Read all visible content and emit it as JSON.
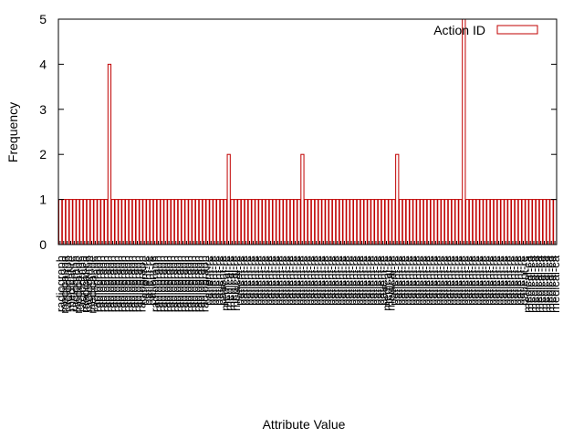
{
  "chart_data": {
    "type": "bar",
    "title": "",
    "xlabel": "Attribute Value",
    "ylabel": "Frequency",
    "ylim": [
      0,
      5
    ],
    "yticks": [
      0,
      1,
      2,
      3,
      4,
      5
    ],
    "legend_position": "top-right",
    "colors": {
      "bar": "#c00000",
      "axis": "#000000"
    },
    "series": [
      {
        "name": "Action ID",
        "values": [
          1,
          1,
          1,
          1,
          1,
          1,
          1,
          1,
          1,
          1,
          1,
          1,
          1,
          1,
          4,
          1,
          1,
          1,
          1,
          1,
          1,
          1,
          1,
          1,
          1,
          1,
          1,
          1,
          1,
          1,
          1,
          1,
          1,
          1,
          1,
          1,
          1,
          1,
          1,
          1,
          1,
          1,
          1,
          1,
          1,
          1,
          1,
          1,
          2,
          1,
          1,
          1,
          1,
          1,
          1,
          1,
          1,
          1,
          1,
          1,
          1,
          1,
          1,
          1,
          1,
          1,
          1,
          1,
          1,
          2,
          1,
          1,
          1,
          1,
          1,
          1,
          1,
          1,
          1,
          1,
          1,
          1,
          1,
          1,
          1,
          1,
          1,
          1,
          1,
          1,
          1,
          1,
          1,
          1,
          1,
          1,
          2,
          1,
          1,
          1,
          1,
          1,
          1,
          1,
          1,
          1,
          1,
          1,
          1,
          1,
          1,
          1,
          1,
          1,
          1,
          5,
          1,
          1,
          1,
          1,
          1,
          1,
          1,
          1,
          1,
          1,
          1,
          1,
          1,
          1,
          1,
          1,
          1,
          1,
          1,
          1,
          1,
          1,
          1,
          1,
          1,
          1
        ]
      }
    ],
    "categories": [
      "radiograph",
      "medical-pa",
      "radiograph",
      "medical-re",
      "radiograph",
      "medical-pe",
      "radiograph",
      "medical-ca",
      "radiograph",
      "medical-pe",
      "radiograph",
      "radiograph",
      "radiograph",
      "radiograph",
      "radiograph",
      "radiograph",
      "radiograph",
      "radiograph",
      "radiograph",
      "radiograph",
      "radiograph",
      "radiograph",
      "radiograph",
      "radiograph",
      "patient-re",
      "patient-re",
      "patient-re",
      "radiograph",
      "radiograph",
      "radiograph",
      "radiograph",
      "radiograph",
      "radiograph",
      "radiograph",
      "radiograph",
      "radiograph",
      "radiograph",
      "radiograph",
      "radiograph",
      "radiograph",
      "radiograph",
      "radiograph",
      "patient-re",
      "patient-re",
      "patient-re",
      "patient-re",
      "patient-re",
      "medical-re",
      "medical-re",
      "medical-re",
      "medical-re",
      "patient-re",
      "patient-re",
      "patient-re",
      "patient-re",
      "patient-re",
      "patient-re",
      "patient-re",
      "patient-re",
      "patient-re",
      "patient-re",
      "patient-re",
      "patient-re",
      "patient-re",
      "patient-re",
      "patient-re",
      "patient-re",
      "patient-re",
      "patient-re",
      "patient-re",
      "patient-re",
      "patient-re",
      "patient-re",
      "patient-re",
      "patient-re",
      "patient-re",
      "patient-re",
      "patient-re",
      "patient-re",
      "patient-re",
      "patient-re",
      "patient-re",
      "patient-re",
      "patient-re",
      "patient-re",
      "patient-re",
      "patient-re",
      "patient-re",
      "patient-re",
      "patient-re",
      "patient-re",
      "patient-re",
      "patient-re",
      "medical-re",
      "medical-re",
      "patient-re",
      "patient-re",
      "patient-re",
      "patient-re",
      "patient-re",
      "patient-re",
      "patient-re",
      "patient-re",
      "patient-re",
      "patient-re",
      "patient-re",
      "patient-re",
      "patient-re",
      "patient-re",
      "patient-re",
      "patient-re",
      "patient-re",
      "patient-re",
      "patient-re",
      "patient-re",
      "patient-re",
      "patient-re",
      "patient-re",
      "patient-re",
      "patient-re",
      "patient-re",
      "patient-re",
      "patient-re",
      "patient-re",
      "patient-re",
      "patient-re",
      "patient-re",
      "patient-re",
      "patient-re",
      "patient-re",
      "patient-re",
      "patient-re",
      "patient-re",
      "medical-ca",
      "medical-ca",
      "medical-ca",
      "medical-ca",
      "medical-ca",
      "medical-ca",
      "medical-ca",
      "medical-ca",
      "medical-ca"
    ]
  }
}
